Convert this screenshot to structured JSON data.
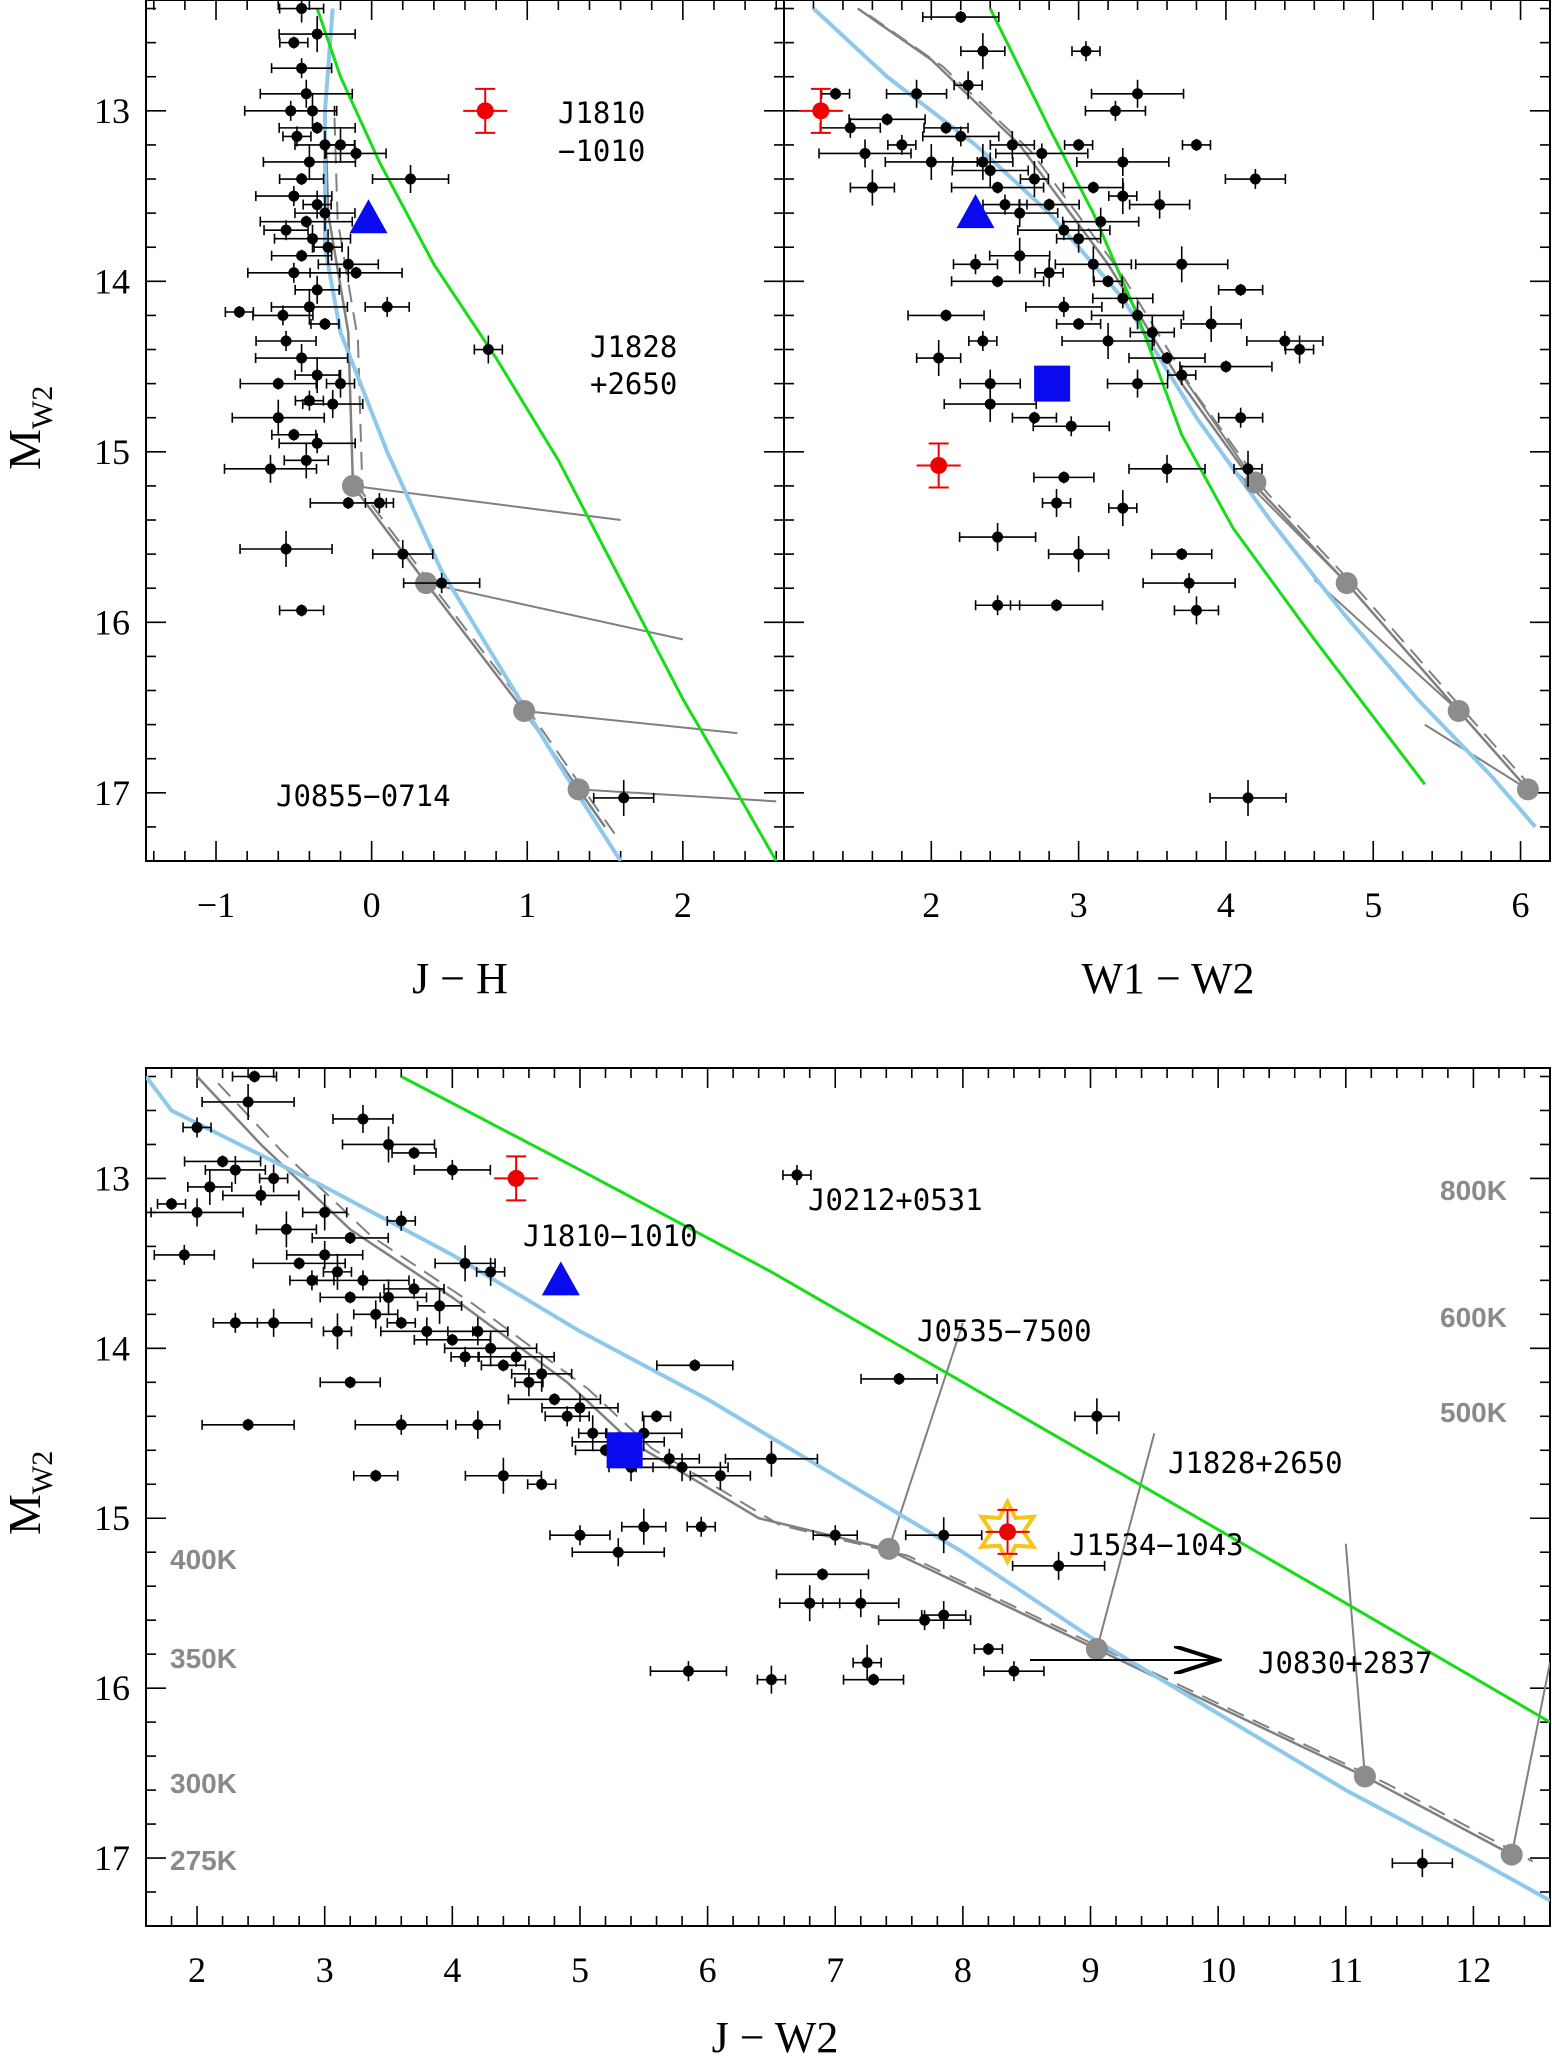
{
  "figure": {
    "ylabel_main": "M",
    "ylabel_sub": "W2"
  },
  "chart_data": [
    {
      "id": "jh",
      "type": "scatter",
      "xlabel": "J − H",
      "ylabel": "M_W2",
      "xlim": [
        -1.45,
        2.65
      ],
      "ylim": [
        12.35,
        17.4
      ],
      "xticks": [
        -1,
        0,
        1,
        2
      ],
      "yticks": [
        13,
        14,
        15,
        16,
        17
      ],
      "points": [
        [
          -0.5,
          12.6
        ],
        [
          -0.45,
          12.75
        ],
        [
          -0.42,
          12.9
        ],
        [
          -0.38,
          13.0
        ],
        [
          -0.35,
          13.1
        ],
        [
          -0.48,
          13.15
        ],
        [
          -0.3,
          13.2
        ],
        [
          -0.4,
          13.3
        ],
        [
          -0.45,
          13.4
        ],
        [
          -0.5,
          13.5
        ],
        [
          -0.35,
          13.55
        ],
        [
          -0.3,
          13.6
        ],
        [
          -0.42,
          13.65
        ],
        [
          -0.55,
          13.7
        ],
        [
          -0.38,
          13.75
        ],
        [
          -0.28,
          13.8
        ],
        [
          -0.45,
          13.85
        ],
        [
          -0.5,
          13.95
        ],
        [
          -0.35,
          14.05
        ],
        [
          -0.4,
          14.15
        ],
        [
          -0.3,
          14.25
        ],
        [
          -0.55,
          14.35
        ],
        [
          -0.45,
          14.45
        ],
        [
          -0.35,
          14.55
        ],
        [
          -0.6,
          14.6
        ],
        [
          -0.4,
          14.7
        ],
        [
          -0.25,
          14.72
        ],
        [
          -0.6,
          14.8
        ],
        [
          -0.5,
          14.9
        ],
        [
          -0.35,
          14.95
        ],
        [
          -0.2,
          14.6
        ],
        [
          -0.15,
          13.9
        ],
        [
          -0.1,
          13.95
        ],
        [
          0.1,
          14.15
        ],
        [
          0.25,
          13.4
        ],
        [
          -0.2,
          13.2
        ],
        [
          -0.1,
          13.25
        ],
        [
          -0.52,
          13.0
        ],
        [
          -0.45,
          12.4
        ],
        [
          -0.35,
          12.55
        ],
        [
          -0.85,
          14.18
        ],
        [
          -0.57,
          14.2
        ],
        [
          -0.65,
          15.1
        ],
        [
          -0.42,
          15.05
        ],
        [
          -0.15,
          15.3
        ],
        [
          0.05,
          15.3
        ],
        [
          0.2,
          15.6
        ],
        [
          -0.55,
          15.57
        ],
        [
          -0.45,
          15.93
        ],
        [
          0.45,
          15.77
        ],
        [
          0.75,
          14.4
        ],
        [
          1.62,
          17.03
        ]
      ],
      "special": [
        {
          "name": "J1810−1010",
          "x": 0.73,
          "y": 13.0,
          "color": "#ee0000"
        },
        {
          "name": "blue triangle",
          "x": -0.02,
          "y": 13.63,
          "color": "#0a0aee"
        }
      ],
      "model_green": [
        [
          -0.35,
          12.4
        ],
        [
          -0.2,
          12.8
        ],
        [
          0.05,
          13.3
        ],
        [
          0.4,
          13.9
        ],
        [
          0.8,
          14.45
        ],
        [
          1.2,
          15.05
        ],
        [
          1.6,
          15.75
        ],
        [
          2.0,
          16.45
        ],
        [
          2.35,
          17.0
        ],
        [
          2.6,
          17.4
        ]
      ],
      "model_blue": [
        [
          -0.25,
          12.4
        ],
        [
          -0.3,
          13.0
        ],
        [
          -0.3,
          13.8
        ],
        [
          -0.2,
          14.3
        ],
        [
          0.1,
          15.0
        ],
        [
          0.45,
          15.7
        ],
        [
          0.85,
          16.3
        ],
        [
          1.25,
          16.9
        ],
        [
          1.6,
          17.4
        ]
      ],
      "model_gray": [
        [
          -0.3,
          13.0
        ],
        [
          -0.28,
          13.6
        ],
        [
          -0.15,
          14.3
        ],
        [
          -0.12,
          15.2
        ],
        [
          0.35,
          15.77
        ],
        [
          0.98,
          16.52
        ],
        [
          1.33,
          16.98
        ],
        [
          1.5,
          17.2
        ]
      ],
      "gray_points": [
        [
          -0.12,
          15.2
        ],
        [
          0.35,
          15.77
        ],
        [
          0.98,
          16.52
        ],
        [
          1.33,
          16.98
        ]
      ],
      "annotations": [
        "J1810",
        "−1010",
        "J1828",
        "+2650",
        "J0855−0714"
      ]
    },
    {
      "id": "w1w2",
      "type": "scatter",
      "xlabel": "W1 − W2",
      "ylabel": "M_W2",
      "xlim": [
        1.0,
        6.2
      ],
      "ylim": [
        12.35,
        17.4
      ],
      "xticks": [
        2,
        3,
        4,
        5,
        6
      ],
      "yticks": [
        13,
        14,
        15,
        16,
        17
      ],
      "points": [
        [
          1.35,
          12.9
        ],
        [
          1.45,
          13.1
        ],
        [
          1.55,
          13.25
        ],
        [
          1.6,
          13.45
        ],
        [
          1.7,
          13.05
        ],
        [
          1.8,
          13.2
        ],
        [
          1.9,
          12.9
        ],
        [
          2.0,
          13.3
        ],
        [
          2.1,
          13.1
        ],
        [
          2.2,
          13.15
        ],
        [
          2.25,
          12.85
        ],
        [
          2.35,
          13.3
        ],
        [
          2.45,
          13.45
        ],
        [
          2.5,
          13.55
        ],
        [
          2.6,
          13.6
        ],
        [
          2.7,
          13.4
        ],
        [
          2.8,
          13.55
        ],
        [
          2.9,
          13.7
        ],
        [
          3.0,
          13.75
        ],
        [
          3.1,
          13.9
        ],
        [
          3.2,
          14.0
        ],
        [
          3.3,
          14.1
        ],
        [
          3.4,
          14.2
        ],
        [
          3.5,
          14.3
        ],
        [
          3.6,
          14.45
        ],
        [
          3.7,
          14.55
        ],
        [
          3.4,
          14.6
        ],
        [
          3.2,
          14.35
        ],
        [
          3.0,
          14.25
        ],
        [
          2.9,
          14.15
        ],
        [
          2.8,
          13.95
        ],
        [
          2.6,
          13.85
        ],
        [
          2.45,
          14.0
        ],
        [
          2.3,
          13.9
        ],
        [
          3.15,
          13.65
        ],
        [
          3.3,
          13.5
        ],
        [
          3.1,
          13.45
        ],
        [
          2.75,
          13.25
        ],
        [
          2.55,
          13.2
        ],
        [
          2.4,
          13.35
        ],
        [
          3.0,
          13.2
        ],
        [
          3.25,
          13.0
        ],
        [
          3.4,
          12.9
        ],
        [
          2.35,
          12.65
        ],
        [
          2.2,
          12.45
        ],
        [
          3.05,
          12.65
        ],
        [
          3.55,
          13.55
        ],
        [
          3.7,
          13.9
        ],
        [
          4.1,
          14.05
        ],
        [
          4.4,
          14.35
        ],
        [
          4.5,
          14.4
        ],
        [
          3.9,
          14.25
        ],
        [
          4.0,
          14.5
        ],
        [
          4.1,
          14.8
        ],
        [
          3.6,
          15.1
        ],
        [
          4.15,
          15.1
        ],
        [
          3.7,
          15.6
        ],
        [
          3.75,
          15.77
        ],
        [
          3.8,
          15.93
        ],
        [
          4.15,
          17.03
        ],
        [
          3.8,
          13.2
        ],
        [
          4.2,
          13.4
        ],
        [
          3.3,
          13.3
        ],
        [
          2.05,
          14.45
        ],
        [
          2.1,
          14.2
        ],
        [
          2.35,
          14.35
        ],
        [
          2.4,
          14.6
        ],
        [
          2.4,
          14.72
        ],
        [
          2.7,
          14.8
        ],
        [
          2.95,
          14.85
        ],
        [
          2.85,
          15.3
        ],
        [
          3.0,
          15.6
        ],
        [
          2.85,
          15.9
        ],
        [
          2.45,
          15.9
        ],
        [
          2.45,
          15.5
        ],
        [
          3.3,
          15.33
        ],
        [
          2.9,
          15.15
        ]
      ],
      "special": [
        {
          "name": "J1810−1010",
          "x": 1.25,
          "y": 13.0,
          "color": "#ee0000"
        },
        {
          "name": "J1828+2650",
          "x": 2.05,
          "y": 15.08,
          "color": "#ee0000"
        },
        {
          "name": "blue triangle",
          "x": 2.3,
          "y": 13.6,
          "color": "#0a0aee"
        },
        {
          "name": "blue square",
          "x": 2.82,
          "y": 14.6,
          "color": "#0a0aee"
        }
      ],
      "model_green": [
        [
          2.4,
          12.4
        ],
        [
          2.8,
          13.1
        ],
        [
          3.1,
          13.6
        ],
        [
          3.4,
          14.2
        ],
        [
          3.7,
          14.9
        ],
        [
          4.05,
          15.45
        ],
        [
          4.6,
          16.1
        ],
        [
          5.35,
          16.95
        ]
      ],
      "model_blue": [
        [
          1.2,
          12.4
        ],
        [
          1.7,
          12.8
        ],
        [
          2.3,
          13.2
        ],
        [
          2.8,
          13.6
        ],
        [
          3.3,
          14.1
        ],
        [
          3.8,
          14.8
        ],
        [
          4.3,
          15.4
        ],
        [
          4.8,
          15.95
        ],
        [
          5.3,
          16.45
        ],
        [
          5.8,
          16.9
        ],
        [
          6.1,
          17.2
        ]
      ],
      "model_gray": [
        [
          1.5,
          12.4
        ],
        [
          2.0,
          12.7
        ],
        [
          2.6,
          13.2
        ],
        [
          3.2,
          13.9
        ],
        [
          3.7,
          14.6
        ],
        [
          4.2,
          15.2
        ],
        [
          4.82,
          15.77
        ],
        [
          5.58,
          16.52
        ],
        [
          6.05,
          16.98
        ]
      ],
      "gray_points": [
        [
          4.2,
          15.18
        ],
        [
          4.82,
          15.77
        ],
        [
          5.58,
          16.52
        ],
        [
          6.05,
          16.98
        ]
      ],
      "annotations": []
    },
    {
      "id": "jw2",
      "type": "scatter",
      "xlabel": "J − W2",
      "ylabel": "M_W2",
      "xlim": [
        1.6,
        12.6
      ],
      "ylim": [
        12.35,
        17.4
      ],
      "xticks": [
        2,
        3,
        4,
        5,
        6,
        7,
        8,
        9,
        10,
        11,
        12
      ],
      "yticks": [
        13,
        14,
        15,
        16,
        17
      ],
      "points": [
        [
          1.8,
          13.15
        ],
        [
          1.9,
          13.45
        ],
        [
          2.0,
          13.2
        ],
        [
          2.1,
          13.05
        ],
        [
          2.2,
          12.9
        ],
        [
          2.0,
          12.7
        ],
        [
          2.3,
          12.95
        ],
        [
          2.4,
          12.55
        ],
        [
          2.45,
          12.4
        ],
        [
          2.5,
          13.1
        ],
        [
          2.6,
          13.0
        ],
        [
          2.7,
          13.3
        ],
        [
          2.8,
          13.5
        ],
        [
          2.9,
          13.6
        ],
        [
          3.0,
          13.45
        ],
        [
          3.1,
          13.55
        ],
        [
          3.2,
          13.7
        ],
        [
          3.3,
          13.6
        ],
        [
          3.4,
          13.8
        ],
        [
          3.5,
          13.7
        ],
        [
          3.6,
          13.85
        ],
        [
          3.7,
          13.65
        ],
        [
          3.8,
          13.9
        ],
        [
          3.9,
          13.75
        ],
        [
          4.0,
          13.95
        ],
        [
          4.1,
          14.05
        ],
        [
          4.2,
          13.9
        ],
        [
          4.3,
          14.0
        ],
        [
          4.4,
          14.1
        ],
        [
          4.5,
          14.05
        ],
        [
          4.6,
          14.2
        ],
        [
          4.7,
          14.15
        ],
        [
          4.8,
          14.3
        ],
        [
          4.9,
          14.4
        ],
        [
          5.0,
          14.35
        ],
        [
          5.1,
          14.5
        ],
        [
          5.2,
          14.6
        ],
        [
          5.3,
          14.55
        ],
        [
          5.4,
          14.7
        ],
        [
          5.5,
          14.5
        ],
        [
          5.6,
          14.4
        ],
        [
          5.7,
          14.65
        ],
        [
          5.8,
          14.7
        ],
        [
          3.0,
          13.2
        ],
        [
          3.2,
          13.35
        ],
        [
          3.6,
          13.25
        ],
        [
          3.3,
          12.65
        ],
        [
          3.5,
          12.8
        ],
        [
          3.7,
          12.85
        ],
        [
          4.0,
          12.95
        ],
        [
          4.3,
          13.55
        ],
        [
          4.1,
          13.5
        ],
        [
          2.4,
          14.45
        ],
        [
          2.3,
          13.85
        ],
        [
          2.6,
          13.85
        ],
        [
          3.1,
          13.9
        ],
        [
          3.2,
          14.2
        ],
        [
          3.6,
          14.45
        ],
        [
          4.2,
          14.45
        ],
        [
          4.4,
          14.75
        ],
        [
          4.7,
          14.8
        ],
        [
          5.0,
          15.1
        ],
        [
          5.3,
          15.2
        ],
        [
          5.5,
          15.05
        ],
        [
          5.9,
          14.1
        ],
        [
          5.95,
          15.05
        ],
        [
          6.1,
          14.75
        ],
        [
          6.5,
          14.65
        ],
        [
          3.4,
          14.75
        ],
        [
          5.85,
          15.9
        ],
        [
          6.5,
          15.95
        ],
        [
          6.8,
          15.5
        ],
        [
          6.9,
          15.33
        ],
        [
          7.0,
          15.1
        ],
        [
          7.2,
          15.5
        ],
        [
          7.25,
          15.85
        ],
        [
          7.3,
          15.95
        ],
        [
          7.7,
          15.6
        ],
        [
          7.85,
          15.57
        ],
        [
          7.85,
          15.1
        ],
        [
          8.2,
          15.77
        ],
        [
          8.4,
          15.9
        ],
        [
          8.75,
          15.28
        ],
        [
          9.05,
          14.4
        ],
        [
          7.5,
          14.18
        ],
        [
          6.7,
          12.98
        ],
        [
          11.6,
          17.03
        ]
      ],
      "special": [
        {
          "name": "J1810−1010",
          "x": 4.5,
          "y": 13.0,
          "color": "#ee0000"
        },
        {
          "name": "J1534−1043",
          "x": 8.35,
          "y": 15.08,
          "color": "#ee0000"
        },
        {
          "name": "blue triangle",
          "x": 4.85,
          "y": 13.6,
          "color": "#0a0aee"
        },
        {
          "name": "blue square",
          "x": 5.35,
          "y": 14.6,
          "color": "#0a0aee"
        }
      ],
      "model_green": [
        [
          3.6,
          12.4
        ],
        [
          5.0,
          12.95
        ],
        [
          6.5,
          13.55
        ],
        [
          8.0,
          14.2
        ],
        [
          9.5,
          14.85
        ],
        [
          11.0,
          15.5
        ],
        [
          12.6,
          16.2
        ]
      ],
      "model_blue": [
        [
          1.6,
          12.4
        ],
        [
          1.8,
          12.6
        ],
        [
          2.2,
          12.75
        ],
        [
          3.0,
          13.05
        ],
        [
          4.0,
          13.45
        ],
        [
          5.0,
          13.9
        ],
        [
          6.0,
          14.3
        ],
        [
          7.0,
          14.75
        ],
        [
          8.0,
          15.2
        ],
        [
          9.0,
          15.7
        ],
        [
          10.0,
          16.15
        ],
        [
          11.0,
          16.6
        ],
        [
          12.0,
          17.0
        ],
        [
          12.6,
          17.25
        ]
      ],
      "model_gray": [
        [
          2.0,
          12.4
        ],
        [
          2.5,
          12.8
        ],
        [
          3.2,
          13.3
        ],
        [
          4.0,
          13.7
        ],
        [
          4.9,
          14.2
        ],
        [
          5.4,
          14.55
        ],
        [
          6.4,
          15.0
        ],
        [
          7.4,
          15.18
        ],
        [
          9.05,
          15.77
        ],
        [
          11.15,
          16.52
        ],
        [
          12.3,
          16.98
        ]
      ],
      "gray_points": [
        [
          7.42,
          15.18
        ],
        [
          9.05,
          15.77
        ],
        [
          11.15,
          16.52
        ],
        [
          12.3,
          16.98
        ]
      ],
      "annotations": [
        "J0212+0531",
        "J1810−1010",
        "J0535−7500",
        "J1828+2650",
        "J1534−1043",
        "J0830+2837"
      ],
      "temperature_labels": [
        "800K",
        "600K",
        "500K",
        "400K",
        "350K",
        "300K",
        "275K"
      ]
    }
  ]
}
